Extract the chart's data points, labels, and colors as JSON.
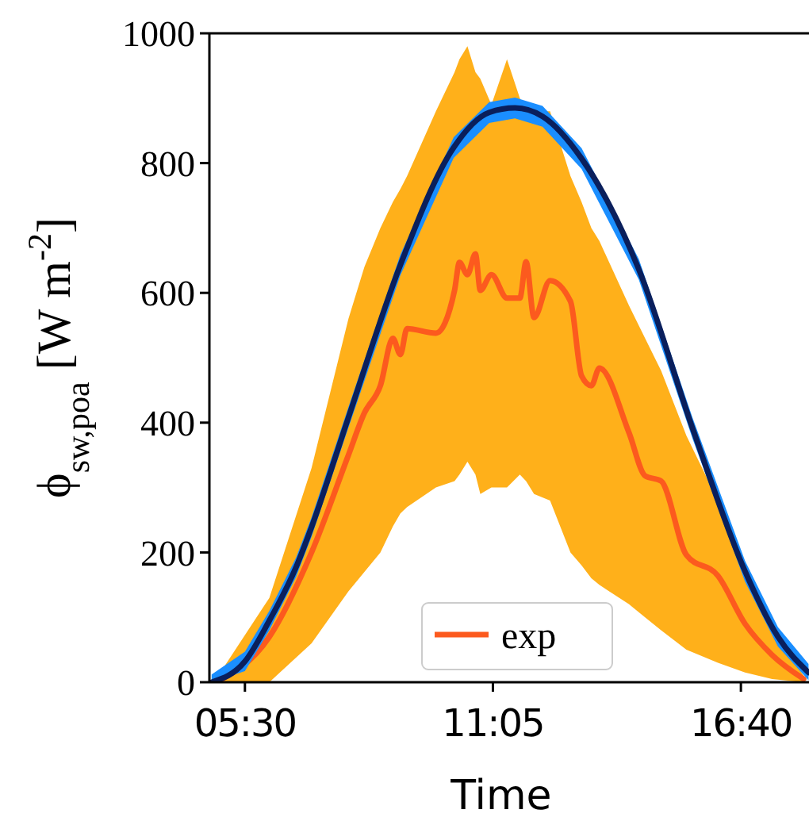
{
  "chart_data": {
    "type": "line",
    "xlabel": "Time",
    "ylabel": "ϕ$_{sw,poa}$ [W m$^{-2}$]",
    "xlim": [
      4.7,
      18.2
    ],
    "xticks": [
      {
        "value": 5.5,
        "label": "05:30"
      },
      {
        "value": 11.0833,
        "label": "11:05"
      },
      {
        "value": 16.6667,
        "label": "16:40"
      }
    ],
    "ylim": [
      0,
      1000
    ],
    "yticks": [
      0,
      200,
      400,
      600,
      800,
      1000
    ],
    "grid": false,
    "legend": "bottom",
    "marker": "none",
    "line_style": "solid",
    "series": [
      {
        "name": "exp",
        "color": "#fc5a1e",
        "x": [
          4.85,
          6.05,
          7.0,
          7.83,
          8.19,
          8.55,
          8.83,
          9.0,
          9.15,
          9.8,
          10.22,
          10.33,
          10.51,
          10.69,
          10.8,
          11.05,
          11.4,
          11.69,
          11.83,
          12.01,
          12.37,
          12.83,
          13.08,
          13.3,
          13.48,
          14.15,
          14.51,
          14.87,
          15.44,
          16.15,
          16.76,
          17.37,
          18.08
        ],
        "values": [
          0,
          70,
          200,
          350,
          415,
          457,
          530,
          505,
          545,
          538,
          604,
          647,
          628,
          660,
          604,
          628,
          592,
          592,
          648,
          562,
          619,
          587,
          472,
          457,
          484,
          384,
          318,
          310,
          196,
          164,
          90,
          42,
          5
        ],
        "upper": [
          5,
          130,
          330,
          560,
          640,
          700,
          740,
          760,
          780,
          880,
          940,
          960,
          980,
          940,
          930,
          890,
          960,
          900,
          880,
          880,
          880,
          780,
          740,
          700,
          680,
          580,
          530,
          480,
          380,
          280,
          170,
          80,
          10
        ],
        "lower": [
          0,
          0,
          60,
          140,
          170,
          200,
          240,
          260,
          270,
          300,
          310,
          320,
          340,
          320,
          290,
          300,
          300,
          320,
          310,
          290,
          280,
          200,
          180,
          160,
          150,
          120,
          100,
          80,
          50,
          30,
          15,
          5,
          0
        ]
      },
      {
        "color": "#0a1f5c",
        "x": [
          4.75,
          5.5,
          6.05,
          6.65,
          7.0,
          7.83,
          9.0,
          10.2,
          11.0,
          11.58,
          12.2,
          13.08,
          14.37,
          15.58,
          16.76,
          17.5,
          18.19
        ],
        "values": [
          0,
          32,
          95,
          177,
          239,
          408,
          643,
          824,
          878,
          885,
          872,
          807,
          636,
          391,
          171,
          70,
          15
        ],
        "upper": [
          12,
          47,
          110,
          192,
          254,
          424,
          659,
          840,
          894,
          901,
          888,
          823,
          652,
          407,
          187,
          85,
          28
        ],
        "lower": [
          0,
          17,
          80,
          162,
          224,
          392,
          627,
          808,
          862,
          869,
          856,
          791,
          620,
          375,
          155,
          55,
          3
        ]
      }
    ]
  }
}
